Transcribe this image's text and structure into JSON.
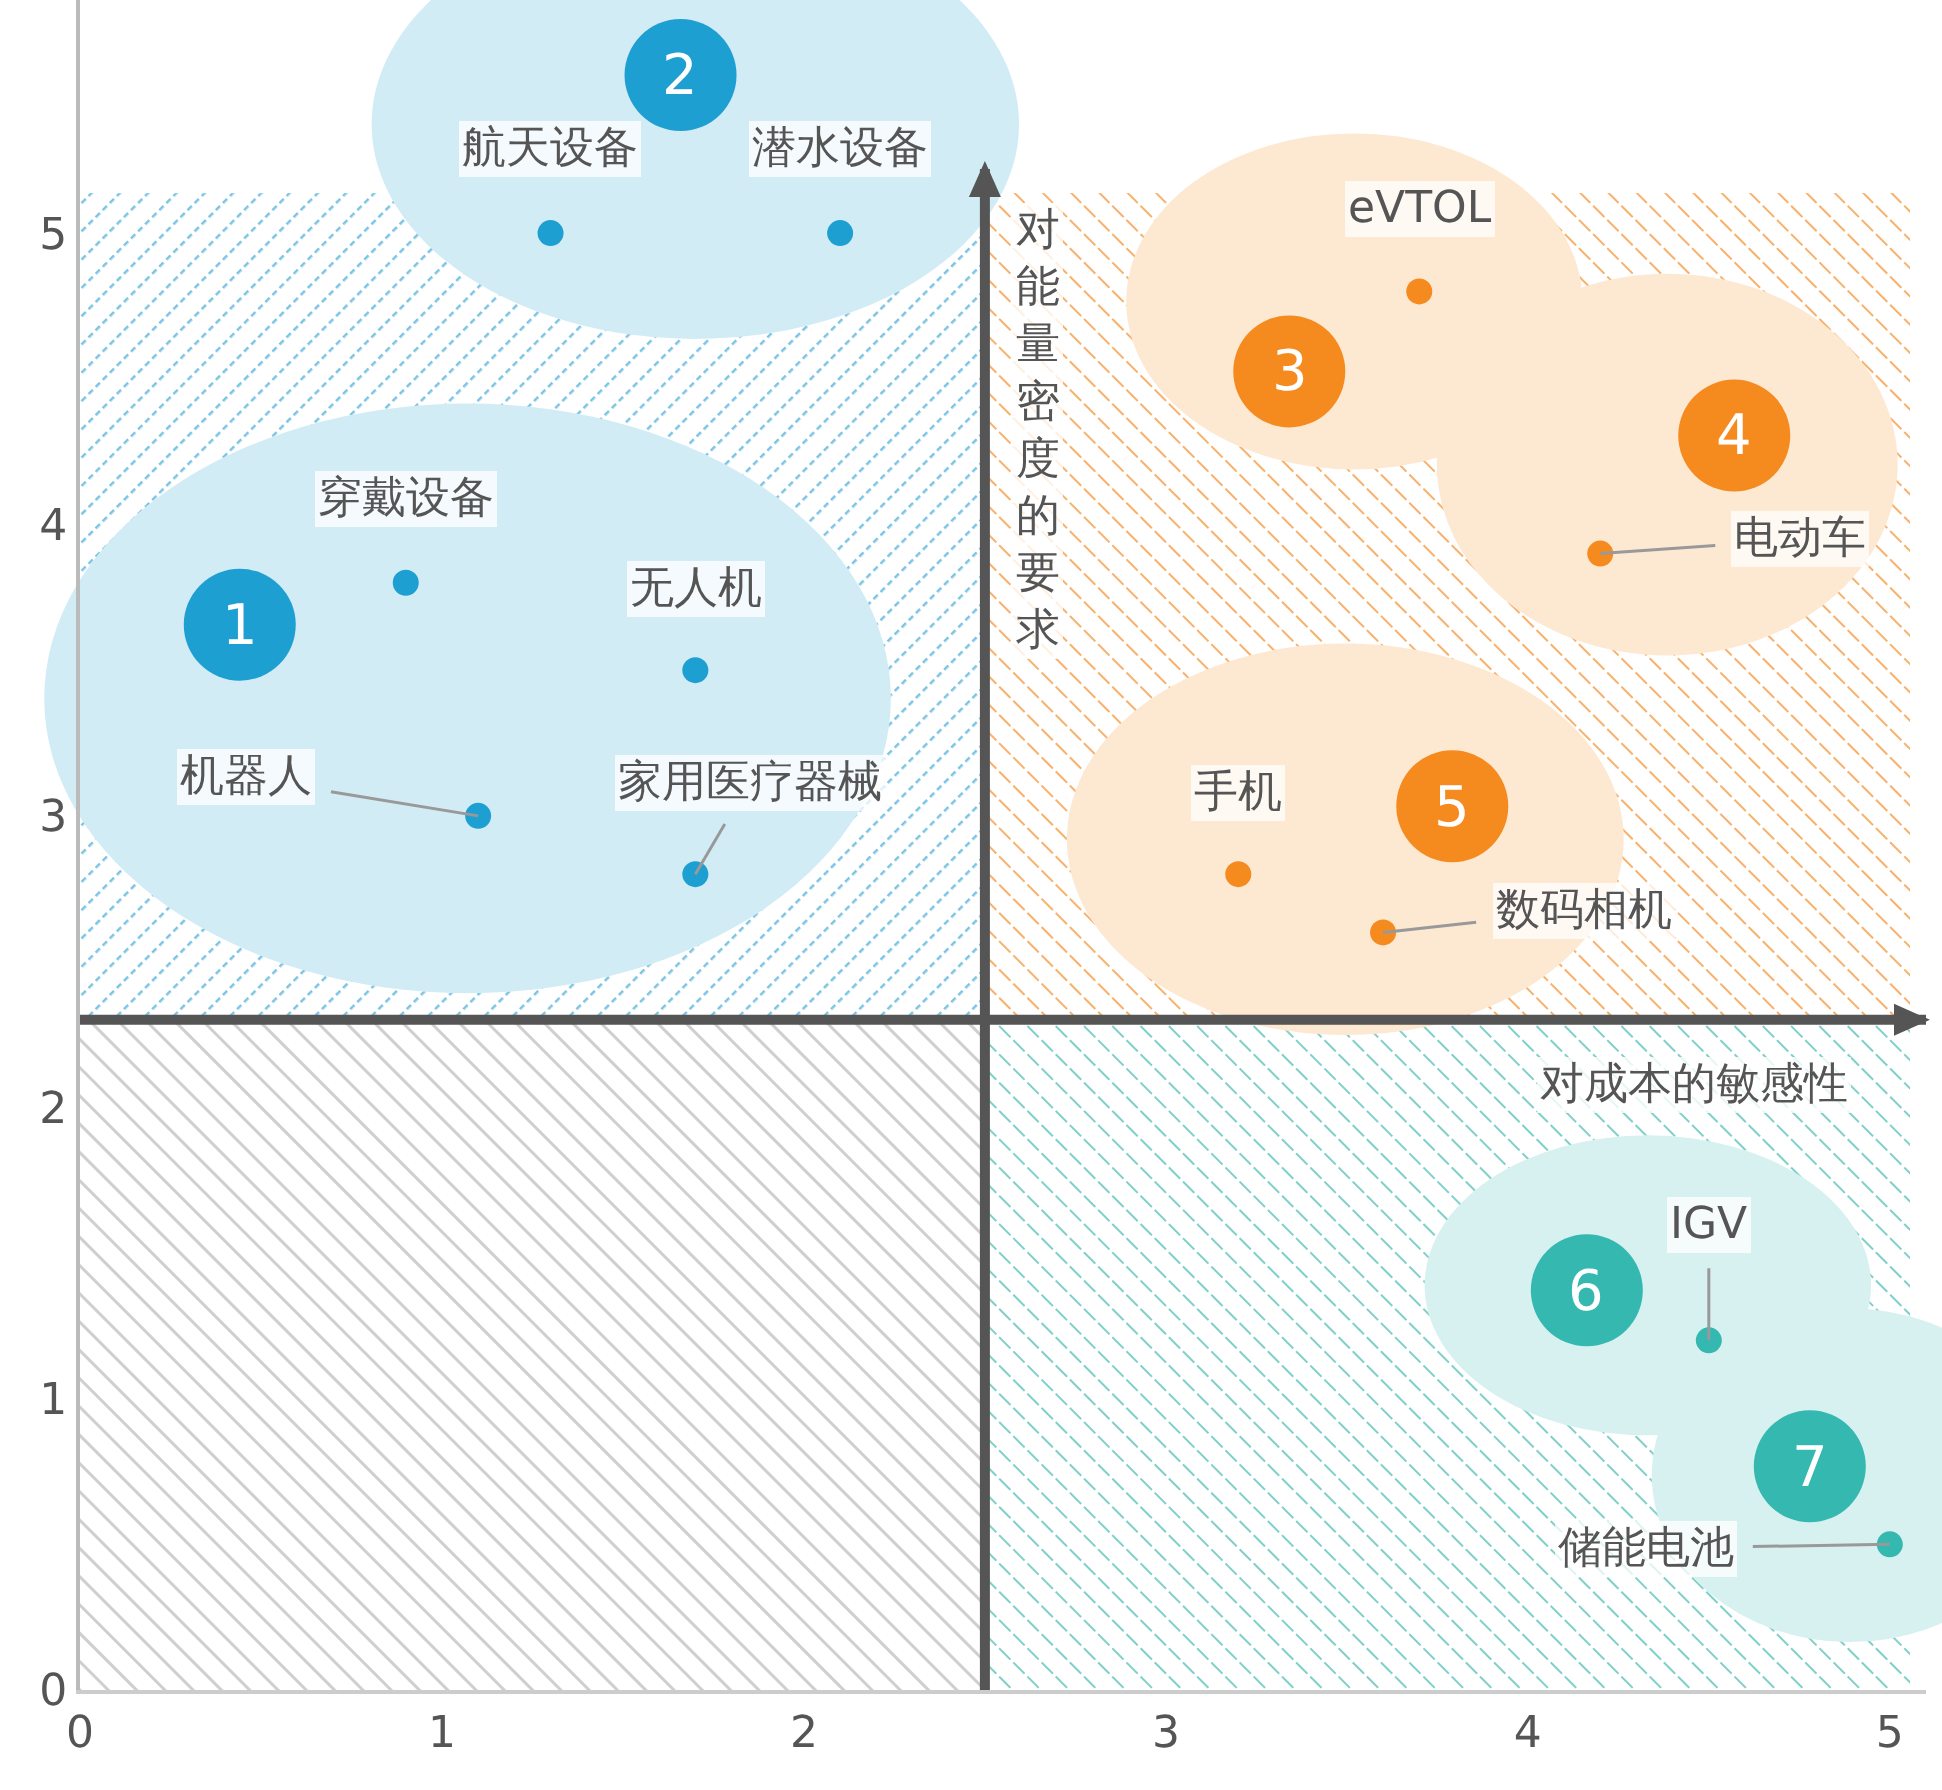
{
  "chart_data": {
    "type": "scatter",
    "xlim": [
      0,
      5.1
    ],
    "ylim": [
      0,
      5.8
    ],
    "xticks": [
      0,
      1,
      2,
      3,
      4,
      5
    ],
    "yticks": [
      0,
      1,
      2,
      3,
      4,
      5
    ],
    "marker": "circle",
    "series": [
      {
        "color": "#1e9fd2",
        "x": [
          0.9,
          1.7,
          1.1,
          1.7
        ],
        "values": [
          3.8,
          3.5,
          3.0,
          2.8
        ]
      },
      {
        "color": "#1e9fd2",
        "x": [
          1.3,
          2.1
        ],
        "values": [
          5.0,
          5.0
        ]
      },
      {
        "color": "#f58a1f",
        "x": [
          3.7
        ],
        "values": [
          4.8
        ]
      },
      {
        "color": "#f58a1f",
        "x": [
          4.2
        ],
        "values": [
          3.9
        ]
      },
      {
        "color": "#f58a1f",
        "x": [
          3.2,
          3.6
        ],
        "values": [
          2.8,
          2.6
        ]
      },
      {
        "color": "#34b8b0",
        "x": [
          4.5
        ],
        "values": [
          1.2
        ]
      },
      {
        "color": "#34b8b0",
        "x": [
          5.0
        ],
        "values": [
          0.5
        ]
      }
    ],
    "ref_lines": [
      {
        "axis": "x",
        "value": 2.5,
        "label": "对能量密度的要求",
        "color": "#555555"
      },
      {
        "axis": "y",
        "value": 2.3,
        "label": "对成本的敏感性",
        "color": "#555555"
      }
    ],
    "annotations": [
      "1",
      "2",
      "3",
      "4",
      "5",
      "6",
      "7",
      {
        "text": "穿戴设备",
        "x": 0.9,
        "y": 3.8
      },
      {
        "text": "无人机",
        "x": 1.7,
        "y": 3.5
      },
      {
        "text": "机器人",
        "x": 1.1,
        "y": 3.0
      },
      {
        "text": "家用医疗器械",
        "x": 1.7,
        "y": 2.8
      },
      {
        "text": "航天设备",
        "x": 1.3,
        "y": 5.0
      },
      {
        "text": "潜水设备",
        "x": 2.1,
        "y": 5.0
      },
      {
        "text": "eVTOL",
        "x": 3.7,
        "y": 4.8
      },
      {
        "text": "电动车",
        "x": 4.2,
        "y": 3.9
      },
      {
        "text": "手机",
        "x": 3.2,
        "y": 2.8
      },
      {
        "text": "数码相机",
        "x": 3.6,
        "y": 2.6
      },
      {
        "text": "IGV",
        "x": 4.5,
        "y": 1.2
      },
      {
        "text": "储能电池",
        "x": 5.0,
        "y": 0.5
      }
    ]
  }
}
